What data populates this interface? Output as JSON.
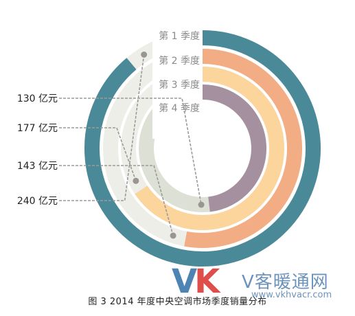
{
  "chart_data": {
    "type": "radial-bar",
    "caption": "图 3   2014 年度中央空调市场季度销量分布",
    "categories": [
      "第 1 季度",
      "第 2 季度",
      "第 3 季度",
      "第 4 季度"
    ],
    "values": [
      240,
      143,
      177,
      130
    ],
    "value_labels": [
      "240 亿元",
      "143 亿元",
      "177 亿元",
      "130 亿元"
    ],
    "unit": "亿元",
    "max": 270,
    "colors": [
      "#4a8a98",
      "#f2ad85",
      "#fcd59d",
      "#a5909f"
    ],
    "track_color": "#eeeee8",
    "inner_track_color": "#dde0d4"
  },
  "watermark": {
    "logo_v": "V",
    "logo_k": "K",
    "text": "V客暖通网",
    "url": "www.vkhvacr.com"
  }
}
